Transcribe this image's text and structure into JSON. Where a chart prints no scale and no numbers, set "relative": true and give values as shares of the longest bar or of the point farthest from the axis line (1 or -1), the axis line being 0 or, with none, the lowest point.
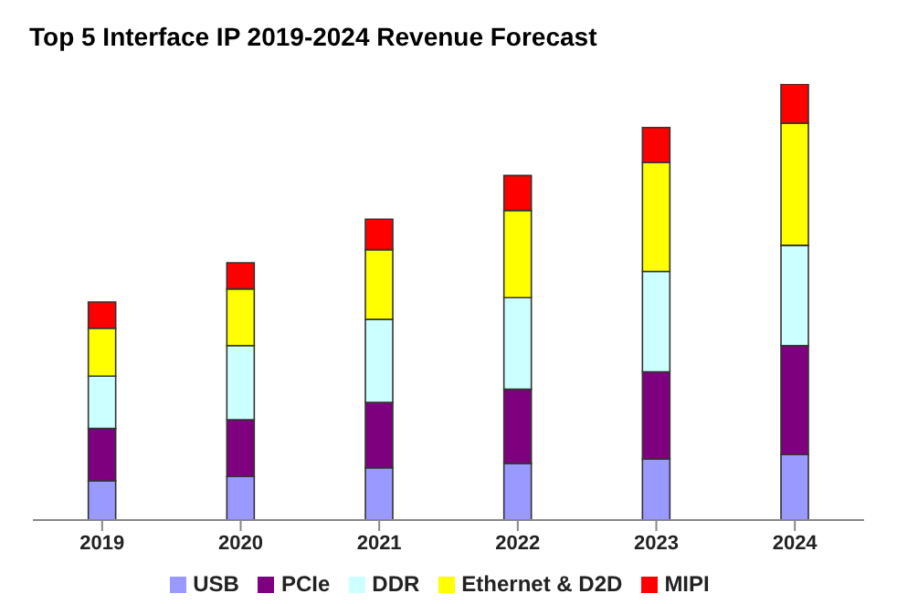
{
  "chart_data": {
    "type": "bar",
    "title": "Top 5 Interface IP 2019-2024 Revenue Forecast",
    "categories": [
      "2019",
      "2020",
      "2021",
      "2022",
      "2023",
      "2024"
    ],
    "stacked": true,
    "relative": true,
    "legend": "bottom",
    "grid": false,
    "series": [
      {
        "name": "USB",
        "color": "#9999ff",
        "values": [
          0.09,
          0.1,
          0.12,
          0.13,
          0.14,
          0.15
        ]
      },
      {
        "name": "PCIe",
        "color": "#7f007f",
        "values": [
          0.12,
          0.13,
          0.15,
          0.17,
          0.2,
          0.25
        ]
      },
      {
        "name": "DDR",
        "color": "#ccffff",
        "values": [
          0.12,
          0.17,
          0.19,
          0.21,
          0.23,
          0.23
        ]
      },
      {
        "name": "Ethernet & D2D",
        "color": "#ffff00",
        "values": [
          0.11,
          0.13,
          0.16,
          0.2,
          0.25,
          0.28
        ]
      },
      {
        "name": "MIPI",
        "color": "#ff0000",
        "values": [
          0.06,
          0.06,
          0.07,
          0.08,
          0.08,
          0.09
        ]
      }
    ]
  }
}
